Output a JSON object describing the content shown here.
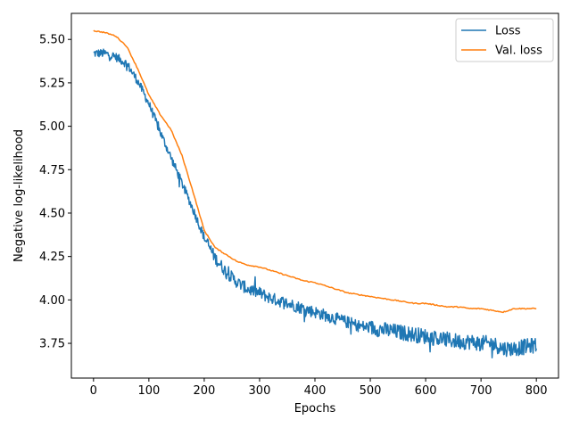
{
  "chart_data": {
    "type": "line",
    "title": "",
    "xlabel": "Epochs",
    "ylabel": "Negative log-likelihood",
    "xlim": [
      -40,
      840
    ],
    "ylim": [
      3.55,
      5.65
    ],
    "xticks": [
      0,
      100,
      200,
      300,
      400,
      500,
      600,
      700,
      800
    ],
    "yticks": [
      3.75,
      4.0,
      4.25,
      4.5,
      4.75,
      5.0,
      5.25,
      5.5
    ],
    "ytick_labels": [
      "3.75",
      "4.00",
      "4.25",
      "4.50",
      "4.75",
      "5.00",
      "5.25",
      "5.50"
    ],
    "grid": false,
    "legend_position": "top-right",
    "series": [
      {
        "name": "Loss",
        "color": "#1f77b4",
        "noisy": true,
        "x": [
          0,
          20,
          40,
          60,
          80,
          100,
          120,
          140,
          160,
          180,
          200,
          220,
          240,
          260,
          280,
          300,
          320,
          340,
          360,
          380,
          400,
          420,
          440,
          460,
          480,
          500,
          520,
          540,
          560,
          580,
          600,
          620,
          640,
          660,
          680,
          700,
          720,
          740,
          760,
          780,
          800
        ],
        "y": [
          5.42,
          5.42,
          5.4,
          5.36,
          5.26,
          5.13,
          4.97,
          4.82,
          4.67,
          4.52,
          4.36,
          4.24,
          4.16,
          4.1,
          4.06,
          4.04,
          4.01,
          3.99,
          3.97,
          3.95,
          3.93,
          3.91,
          3.89,
          3.87,
          3.85,
          3.84,
          3.83,
          3.82,
          3.81,
          3.8,
          3.79,
          3.78,
          3.77,
          3.76,
          3.76,
          3.75,
          3.75,
          3.72,
          3.72,
          3.73,
          3.74
        ]
      },
      {
        "name": "Val. loss",
        "color": "#ff7f0e",
        "noisy": false,
        "x": [
          0,
          20,
          40,
          60,
          80,
          100,
          120,
          140,
          160,
          180,
          200,
          220,
          240,
          260,
          280,
          300,
          320,
          340,
          360,
          380,
          400,
          420,
          440,
          460,
          480,
          500,
          520,
          540,
          560,
          580,
          600,
          620,
          640,
          660,
          680,
          700,
          720,
          740,
          760,
          780,
          800
        ],
        "y": [
          5.55,
          5.54,
          5.52,
          5.46,
          5.33,
          5.18,
          5.07,
          4.98,
          4.83,
          4.62,
          4.4,
          4.3,
          4.26,
          4.22,
          4.2,
          4.19,
          4.17,
          4.15,
          4.13,
          4.11,
          4.1,
          4.08,
          4.06,
          4.04,
          4.03,
          4.02,
          4.01,
          4.0,
          3.99,
          3.98,
          3.98,
          3.97,
          3.96,
          3.96,
          3.95,
          3.95,
          3.94,
          3.93,
          3.95,
          3.95,
          3.95
        ]
      }
    ]
  }
}
